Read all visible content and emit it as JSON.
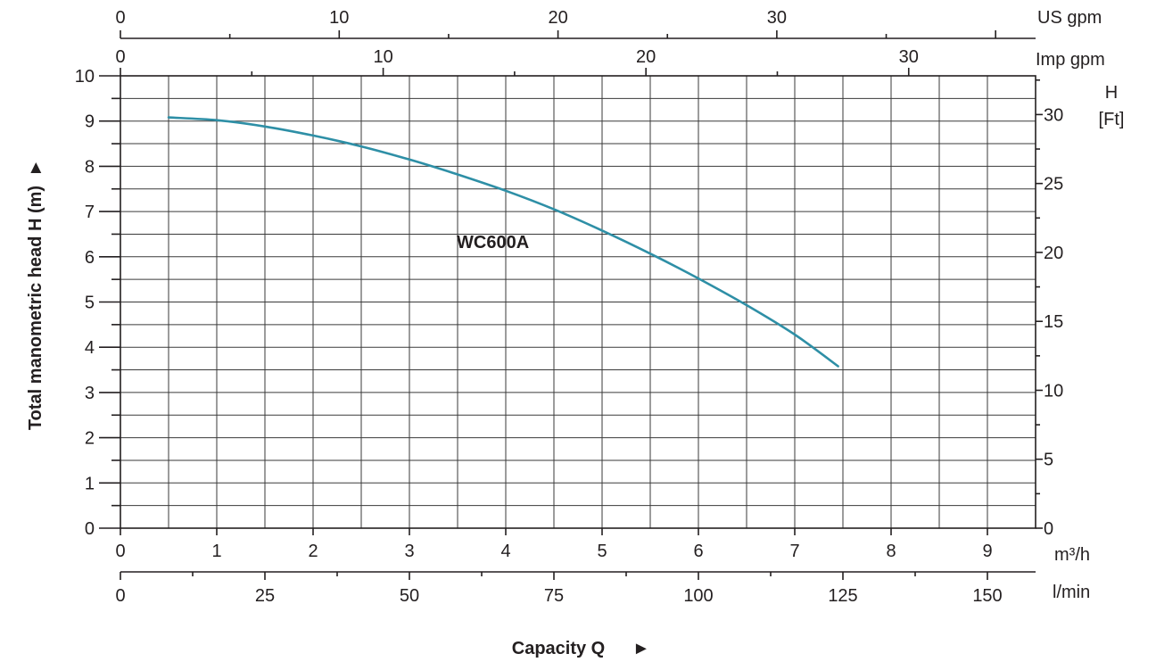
{
  "chart_data": {
    "type": "line",
    "series": [
      {
        "name": "WC600A",
        "color": "#2e8fa6",
        "x": [
          0.5,
          1.0,
          1.5,
          2.0,
          2.5,
          3.0,
          3.5,
          4.0,
          4.5,
          5.0,
          5.5,
          6.0,
          6.5,
          7.0,
          7.45
        ],
        "y": [
          9.08,
          9.02,
          8.88,
          8.68,
          8.44,
          8.15,
          7.82,
          7.46,
          7.05,
          6.58,
          6.07,
          5.52,
          4.93,
          4.28,
          3.58
        ]
      }
    ],
    "x_axis": {
      "primary_unit": "m³/h",
      "primary_range": [
        0,
        9.5
      ],
      "primary_ticks": [
        "0",
        "1",
        "2",
        "3",
        "4",
        "5",
        "6",
        "7",
        "8",
        "9"
      ],
      "lmin_unit": "l/min",
      "lmin_ticks": [
        "0",
        "25",
        "50",
        "75",
        "100",
        "125",
        "150"
      ],
      "usgpm_unit": "US  gpm",
      "usgpm_ticks": [
        "0",
        "10",
        "20",
        "30"
      ],
      "impgpm_unit": "Imp gpm",
      "impgpm_ticks": [
        "0",
        "10",
        "20",
        "30"
      ],
      "label": "Capacity Q"
    },
    "y_axis": {
      "label": "Total manometric head H (m)",
      "range": [
        0,
        10
      ],
      "ticks": [
        "0",
        "1",
        "2",
        "3",
        "4",
        "5",
        "6",
        "7",
        "8",
        "9",
        "10"
      ],
      "ft_unit_top": "H",
      "ft_unit_bottom": "[Ft]",
      "ft_ticks": [
        "0",
        "5",
        "10",
        "15",
        "20",
        "25",
        "30"
      ]
    },
    "curve_label": "WC600A",
    "grid": true
  }
}
